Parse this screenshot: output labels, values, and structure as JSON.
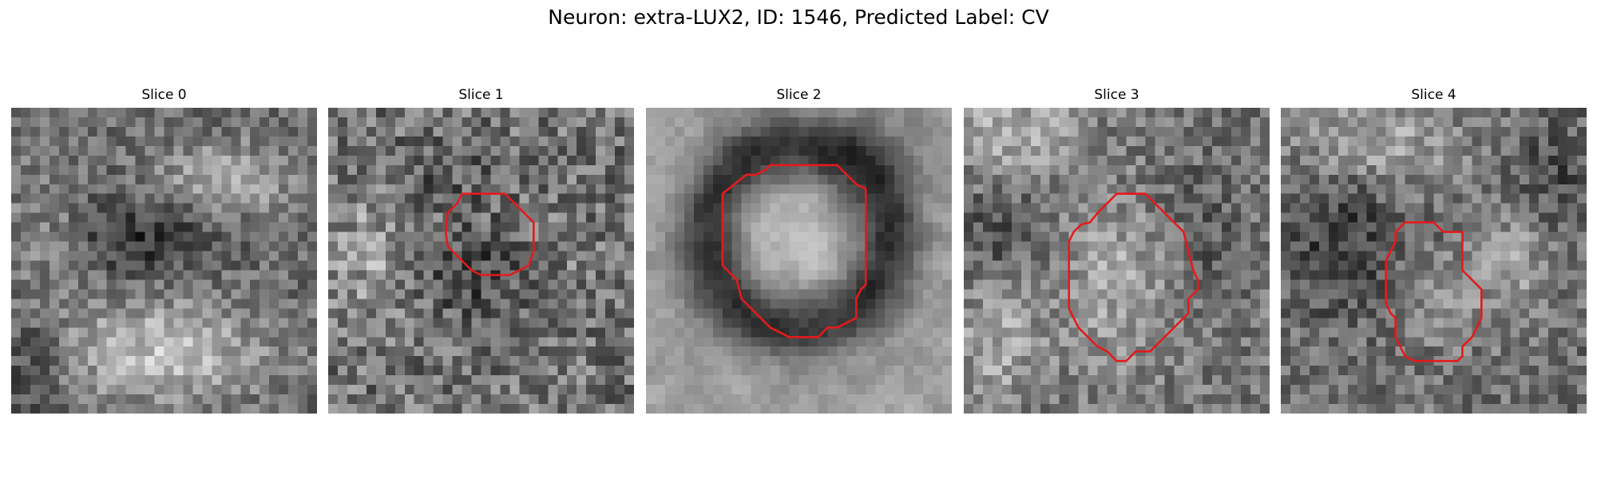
{
  "figure": {
    "title": "Neuron: extra-LUX2, ID: 1546, Predicted Label: CV"
  },
  "colors": {
    "roi_outline": "#e41a1c",
    "colormap": "gray"
  },
  "slices": [
    {
      "title": "Slice 0",
      "has_roi": false
    },
    {
      "title": "Slice 1",
      "has_roi": true
    },
    {
      "title": "Slice 2",
      "has_roi": true
    },
    {
      "title": "Slice 3",
      "has_roi": true
    },
    {
      "title": "Slice 4",
      "has_roi": true
    }
  ]
}
